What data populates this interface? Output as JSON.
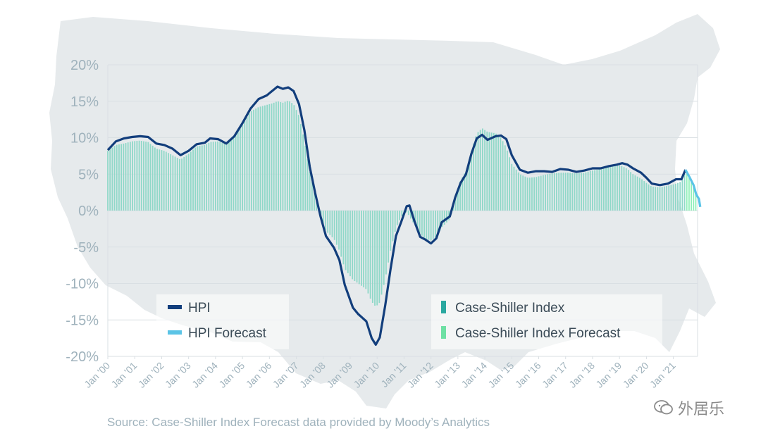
{
  "colors": {
    "hpi": "#123e7c",
    "hpi_forecast": "#5bc4e6",
    "case_shiller": "#8fd8c8",
    "case_shiller_forecast": "#8ff0b8",
    "map": "#e6eaec",
    "grid": "#d9dfe3",
    "axis_text": "#9fb2bc"
  },
  "source": "Source: Case-Shiller Index Forecast data provided by Moody’s Analytics",
  "watermark": {
    "text": "外居乐",
    "icon": "wechat-icon"
  },
  "chart_data": {
    "type": "bar+line",
    "background": "us-map",
    "ylim": [
      -20,
      20
    ],
    "y_ticks": [
      "20%",
      "15%",
      "10%",
      "5%",
      "0%",
      "-5%",
      "-10%",
      "-15%",
      "-20%"
    ],
    "x_ticks": [
      "Jan '00",
      "Jan '01",
      "Jan '02",
      "Jan '03",
      "Jan '04",
      "Jan '05",
      "Jan '06",
      "Jan '07",
      "Jan '08",
      "Jan '09",
      "Jan '10",
      "Jan '11",
      "Jan '12",
      "Jan '13",
      "Jan '14",
      "Jan '15",
      "Jan '16",
      "Jan '17",
      "Jan '18",
      "Jan '19",
      "Jan '20",
      "Jan '21"
    ],
    "xlim": [
      2000.0,
      2021.9
    ],
    "legend": [
      {
        "label": "HPI",
        "color": "#123e7c"
      },
      {
        "label": "HPI Forecast",
        "color": "#5bc4e6"
      },
      {
        "label": "Case-Shiller Index",
        "color": "#2aa8a0"
      },
      {
        "label": "Case-Shiller Index Forecast",
        "color": "#6ee0a4"
      }
    ],
    "hpi_points": [
      [
        2000.0,
        8.3
      ],
      [
        2000.3,
        9.5
      ],
      [
        2000.6,
        9.9
      ],
      [
        2000.9,
        10.1
      ],
      [
        2001.2,
        10.2
      ],
      [
        2001.5,
        10.1
      ],
      [
        2001.8,
        9.2
      ],
      [
        2002.1,
        9.0
      ],
      [
        2002.4,
        8.5
      ],
      [
        2002.7,
        7.6
      ],
      [
        2003.0,
        8.2
      ],
      [
        2003.3,
        9.1
      ],
      [
        2003.6,
        9.3
      ],
      [
        2003.8,
        9.9
      ],
      [
        2004.1,
        9.8
      ],
      [
        2004.4,
        9.2
      ],
      [
        2004.7,
        10.2
      ],
      [
        2005.0,
        12.0
      ],
      [
        2005.3,
        14.0
      ],
      [
        2005.6,
        15.3
      ],
      [
        2005.9,
        15.8
      ],
      [
        2006.1,
        16.4
      ],
      [
        2006.3,
        17.0
      ],
      [
        2006.5,
        16.7
      ],
      [
        2006.7,
        16.9
      ],
      [
        2006.9,
        16.4
      ],
      [
        2007.1,
        14.6
      ],
      [
        2007.3,
        11.0
      ],
      [
        2007.5,
        6.0
      ],
      [
        2007.7,
        2.4
      ],
      [
        2007.9,
        -0.8
      ],
      [
        2008.1,
        -3.5
      ],
      [
        2008.4,
        -5.1
      ],
      [
        2008.6,
        -6.8
      ],
      [
        2008.8,
        -10.2
      ],
      [
        2009.1,
        -13.3
      ],
      [
        2009.3,
        -14.2
      ],
      [
        2009.6,
        -15.2
      ],
      [
        2009.8,
        -17.5
      ],
      [
        2009.95,
        -18.4
      ],
      [
        2010.1,
        -17.4
      ],
      [
        2010.3,
        -13.0
      ],
      [
        2010.5,
        -8.0
      ],
      [
        2010.7,
        -3.5
      ],
      [
        2010.9,
        -1.5
      ],
      [
        2011.1,
        0.6
      ],
      [
        2011.2,
        0.7
      ],
      [
        2011.4,
        -1.6
      ],
      [
        2011.6,
        -3.6
      ],
      [
        2011.8,
        -4.0
      ],
      [
        2012.0,
        -4.5
      ],
      [
        2012.2,
        -3.8
      ],
      [
        2012.4,
        -1.6
      ],
      [
        2012.7,
        -0.8
      ],
      [
        2012.9,
        1.8
      ],
      [
        2013.1,
        3.8
      ],
      [
        2013.3,
        5.0
      ],
      [
        2013.5,
        7.8
      ],
      [
        2013.7,
        9.9
      ],
      [
        2013.9,
        10.4
      ],
      [
        2014.1,
        9.7
      ],
      [
        2014.4,
        10.2
      ],
      [
        2014.6,
        10.3
      ],
      [
        2014.8,
        9.8
      ],
      [
        2015.0,
        7.6
      ],
      [
        2015.3,
        5.6
      ],
      [
        2015.6,
        5.2
      ],
      [
        2015.9,
        5.4
      ],
      [
        2016.2,
        5.4
      ],
      [
        2016.5,
        5.3
      ],
      [
        2016.8,
        5.7
      ],
      [
        2017.1,
        5.6
      ],
      [
        2017.4,
        5.3
      ],
      [
        2017.7,
        5.5
      ],
      [
        2018.0,
        5.8
      ],
      [
        2018.3,
        5.8
      ],
      [
        2018.6,
        6.1
      ],
      [
        2018.9,
        6.3
      ],
      [
        2019.1,
        6.5
      ],
      [
        2019.3,
        6.3
      ],
      [
        2019.5,
        5.8
      ],
      [
        2019.8,
        5.2
      ],
      [
        2020.0,
        4.5
      ],
      [
        2020.2,
        3.7
      ],
      [
        2020.5,
        3.5
      ],
      [
        2020.8,
        3.7
      ],
      [
        2021.1,
        4.3
      ],
      [
        2021.3,
        4.3
      ],
      [
        2021.45,
        5.6
      ]
    ],
    "hpi_forecast_points": [
      [
        2021.45,
        5.6
      ],
      [
        2021.6,
        4.6
      ],
      [
        2021.75,
        3.5
      ],
      [
        2021.85,
        2.2
      ],
      [
        2021.95,
        1.6
      ],
      [
        2022.0,
        0.5
      ]
    ],
    "case_shiller_points": [
      [
        2000.0,
        8.2
      ],
      [
        2000.3,
        9.0
      ],
      [
        2000.6,
        9.2
      ],
      [
        2000.9,
        9.5
      ],
      [
        2001.2,
        9.6
      ],
      [
        2001.5,
        9.4
      ],
      [
        2001.8,
        8.5
      ],
      [
        2002.1,
        8.2
      ],
      [
        2002.4,
        7.6
      ],
      [
        2002.7,
        7.0
      ],
      [
        2003.0,
        7.8
      ],
      [
        2003.3,
        8.8
      ],
      [
        2003.6,
        9.0
      ],
      [
        2003.8,
        9.4
      ],
      [
        2004.1,
        9.5
      ],
      [
        2004.4,
        9.1
      ],
      [
        2004.7,
        10.0
      ],
      [
        2005.0,
        11.8
      ],
      [
        2005.3,
        13.6
      ],
      [
        2005.6,
        14.2
      ],
      [
        2005.9,
        14.5
      ],
      [
        2006.1,
        14.7
      ],
      [
        2006.3,
        15.0
      ],
      [
        2006.5,
        14.8
      ],
      [
        2006.7,
        15.1
      ],
      [
        2006.9,
        14.6
      ],
      [
        2007.1,
        13.0
      ],
      [
        2007.3,
        9.6
      ],
      [
        2007.5,
        5.3
      ],
      [
        2007.7,
        2.0
      ],
      [
        2007.9,
        -0.9
      ],
      [
        2008.1,
        -2.8
      ],
      [
        2008.4,
        -3.9
      ],
      [
        2008.6,
        -5.5
      ],
      [
        2008.8,
        -8.0
      ],
      [
        2009.1,
        -9.5
      ],
      [
        2009.3,
        -10.0
      ],
      [
        2009.6,
        -10.8
      ],
      [
        2009.8,
        -12.5
      ],
      [
        2009.95,
        -13.2
      ],
      [
        2010.1,
        -12.6
      ],
      [
        2010.3,
        -9.4
      ],
      [
        2010.5,
        -5.5
      ],
      [
        2010.7,
        -2.4
      ],
      [
        2010.9,
        -0.8
      ],
      [
        2011.1,
        -0.2
      ],
      [
        2011.3,
        -1.4
      ],
      [
        2011.6,
        -3.2
      ],
      [
        2011.8,
        -3.9
      ],
      [
        2012.0,
        -4.1
      ],
      [
        2012.2,
        -3.6
      ],
      [
        2012.4,
        -2.3
      ],
      [
        2012.7,
        -1.2
      ],
      [
        2012.9,
        1.8
      ],
      [
        2013.1,
        4.2
      ],
      [
        2013.3,
        5.4
      ],
      [
        2013.5,
        8.2
      ],
      [
        2013.7,
        10.6
      ],
      [
        2013.9,
        11.3
      ],
      [
        2014.1,
        10.8
      ],
      [
        2014.4,
        10.6
      ],
      [
        2014.6,
        10.0
      ],
      [
        2014.8,
        8.6
      ],
      [
        2015.0,
        6.4
      ],
      [
        2015.3,
        5.0
      ],
      [
        2015.6,
        4.5
      ],
      [
        2015.9,
        4.6
      ],
      [
        2016.2,
        4.9
      ],
      [
        2016.5,
        5.1
      ],
      [
        2016.8,
        5.2
      ],
      [
        2017.1,
        5.2
      ],
      [
        2017.4,
        5.1
      ],
      [
        2017.7,
        5.2
      ],
      [
        2018.0,
        5.5
      ],
      [
        2018.3,
        5.7
      ],
      [
        2018.6,
        6.0
      ],
      [
        2018.9,
        6.3
      ],
      [
        2019.1,
        6.1
      ],
      [
        2019.3,
        5.7
      ],
      [
        2019.5,
        5.0
      ],
      [
        2019.8,
        4.4
      ],
      [
        2020.0,
        3.8
      ],
      [
        2020.2,
        3.3
      ],
      [
        2020.5,
        3.2
      ],
      [
        2020.8,
        3.4
      ],
      [
        2021.1,
        3.7
      ],
      [
        2021.3,
        4.0
      ],
      [
        2021.45,
        5.3
      ]
    ],
    "case_shiller_forecast_points": [
      [
        2021.45,
        5.3
      ],
      [
        2021.6,
        4.4
      ],
      [
        2021.75,
        3.3
      ],
      [
        2021.85,
        2.1
      ],
      [
        2021.95,
        1.3
      ],
      [
        2022.0,
        0.4
      ]
    ]
  }
}
